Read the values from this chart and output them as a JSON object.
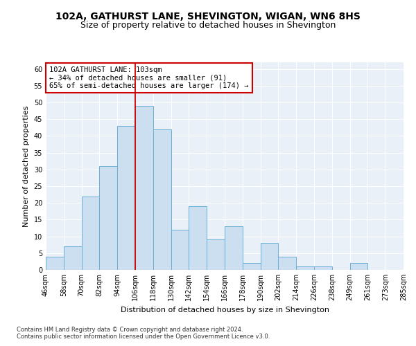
{
  "title1": "102A, GATHURST LANE, SHEVINGTON, WIGAN, WN6 8HS",
  "title2": "Size of property relative to detached houses in Shevington",
  "xlabel": "Distribution of detached houses by size in Shevington",
  "ylabel": "Number of detached properties",
  "bar_values": [
    4,
    7,
    22,
    31,
    43,
    49,
    42,
    12,
    19,
    9,
    13,
    2,
    8,
    4,
    1,
    1,
    0,
    2,
    0,
    0
  ],
  "bin_labels": [
    "46sqm",
    "58sqm",
    "70sqm",
    "82sqm",
    "94sqm",
    "106sqm",
    "118sqm",
    "130sqm",
    "142sqm",
    "154sqm",
    "166sqm",
    "178sqm",
    "190sqm",
    "202sqm",
    "214sqm",
    "226sqm",
    "238sqm",
    "249sqm",
    "261sqm",
    "273sqm",
    "285sqm"
  ],
  "bar_color": "#ccdff0",
  "bar_edge_color": "#6aafd6",
  "vline_x": 4.5,
  "vline_color": "#cc0000",
  "annotation_text": "102A GATHURST LANE: 103sqm\n← 34% of detached houses are smaller (91)\n65% of semi-detached houses are larger (174) →",
  "annotation_box_color": "#ffffff",
  "annotation_box_edge": "#cc0000",
  "ylim": [
    0,
    62
  ],
  "yticks": [
    0,
    5,
    10,
    15,
    20,
    25,
    30,
    35,
    40,
    45,
    50,
    55,
    60
  ],
  "background_color": "#eaf0f8",
  "footer1": "Contains HM Land Registry data © Crown copyright and database right 2024.",
  "footer2": "Contains public sector information licensed under the Open Government Licence v3.0.",
  "title_fontsize": 10,
  "subtitle_fontsize": 9,
  "xlabel_fontsize": 8,
  "ylabel_fontsize": 8,
  "tick_fontsize": 7,
  "annotation_fontsize": 7.5,
  "footer_fontsize": 6
}
